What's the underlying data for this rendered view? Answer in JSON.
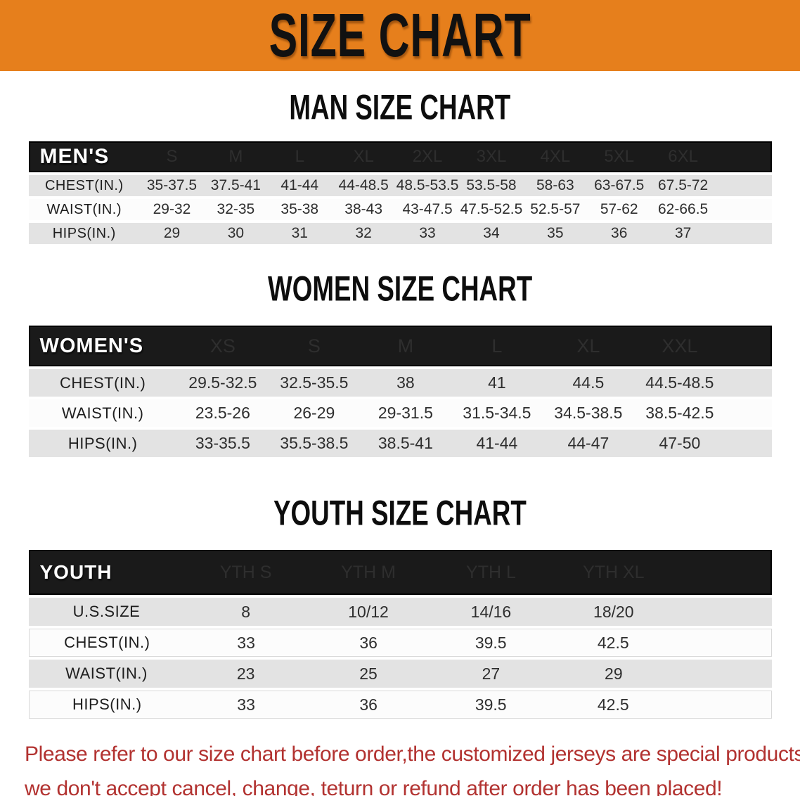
{
  "banner": {
    "title": "SIZE CHART"
  },
  "sections": [
    {
      "heading": "MAN SIZE CHART",
      "table": {
        "label": "MEN'S",
        "columns": [
          "S",
          "M",
          "L",
          "XL",
          "2XL",
          "3XL",
          "4XL",
          "5XL",
          "6XL"
        ],
        "rows": [
          {
            "label": "CHEST(IN.)",
            "values": [
              "35-37.5",
              "37.5-41",
              "41-44",
              "44-48.5",
              "48.5-53.5",
              "53.5-58",
              "58-63",
              "63-67.5",
              "67.5-72"
            ]
          },
          {
            "label": "WAIST(IN.)",
            "values": [
              "29-32",
              "32-35",
              "35-38",
              "38-43",
              "43-47.5",
              "47.5-52.5",
              "52.5-57",
              "57-62",
              "62-66.5"
            ]
          },
          {
            "label": "HIPS(IN.)",
            "values": [
              "29",
              "30",
              "31",
              "32",
              "33",
              "34",
              "35",
              "36",
              "37"
            ]
          }
        ]
      }
    },
    {
      "heading": "WOMEN SIZE CHART",
      "table": {
        "label": "WOMEN'S",
        "columns": [
          "XS",
          "S",
          "M",
          "L",
          "XL",
          "XXL"
        ],
        "rows": [
          {
            "label": "CHEST(IN.)",
            "values": [
              "29.5-32.5",
              "32.5-35.5",
              "38",
              "41",
              "44.5",
              "44.5-48.5"
            ]
          },
          {
            "label": "WAIST(IN.)",
            "values": [
              "23.5-26",
              "26-29",
              "29-31.5",
              "31.5-34.5",
              "34.5-38.5",
              "38.5-42.5"
            ]
          },
          {
            "label": "HIPS(IN.)",
            "values": [
              "33-35.5",
              "35.5-38.5",
              "38.5-41",
              "41-44",
              "44-47",
              "47-50"
            ]
          }
        ]
      }
    },
    {
      "heading": "YOUTH SIZE CHART",
      "table": {
        "label": "YOUTH",
        "columns": [
          "YTH S",
          "YTH M",
          "YTH L",
          "YTH XL"
        ],
        "rows": [
          {
            "label": "U.S.SIZE",
            "values": [
              "8",
              "10/12",
              "14/16",
              "18/20"
            ]
          },
          {
            "label": "CHEST(IN.)",
            "values": [
              "33",
              "36",
              "39.5",
              "42.5"
            ]
          },
          {
            "label": "WAIST(IN.)",
            "values": [
              "23",
              "25",
              "27",
              "29"
            ]
          },
          {
            "label": "HIPS(IN.)",
            "values": [
              "33",
              "36",
              "39.5",
              "42.5"
            ]
          }
        ]
      }
    }
  ],
  "footer": {
    "line1": "Please refer to our size chart before order,the customized jerseys are special products,",
    "line2": "we don't accept cancel, change, teturn or refund after order has been placed!"
  },
  "colors": {
    "orange": "#e67f1c",
    "bar": "#1a1a1a",
    "row_gray": "#e3e3e3",
    "row_white": "#fcfcfc",
    "red": "#b23230"
  }
}
